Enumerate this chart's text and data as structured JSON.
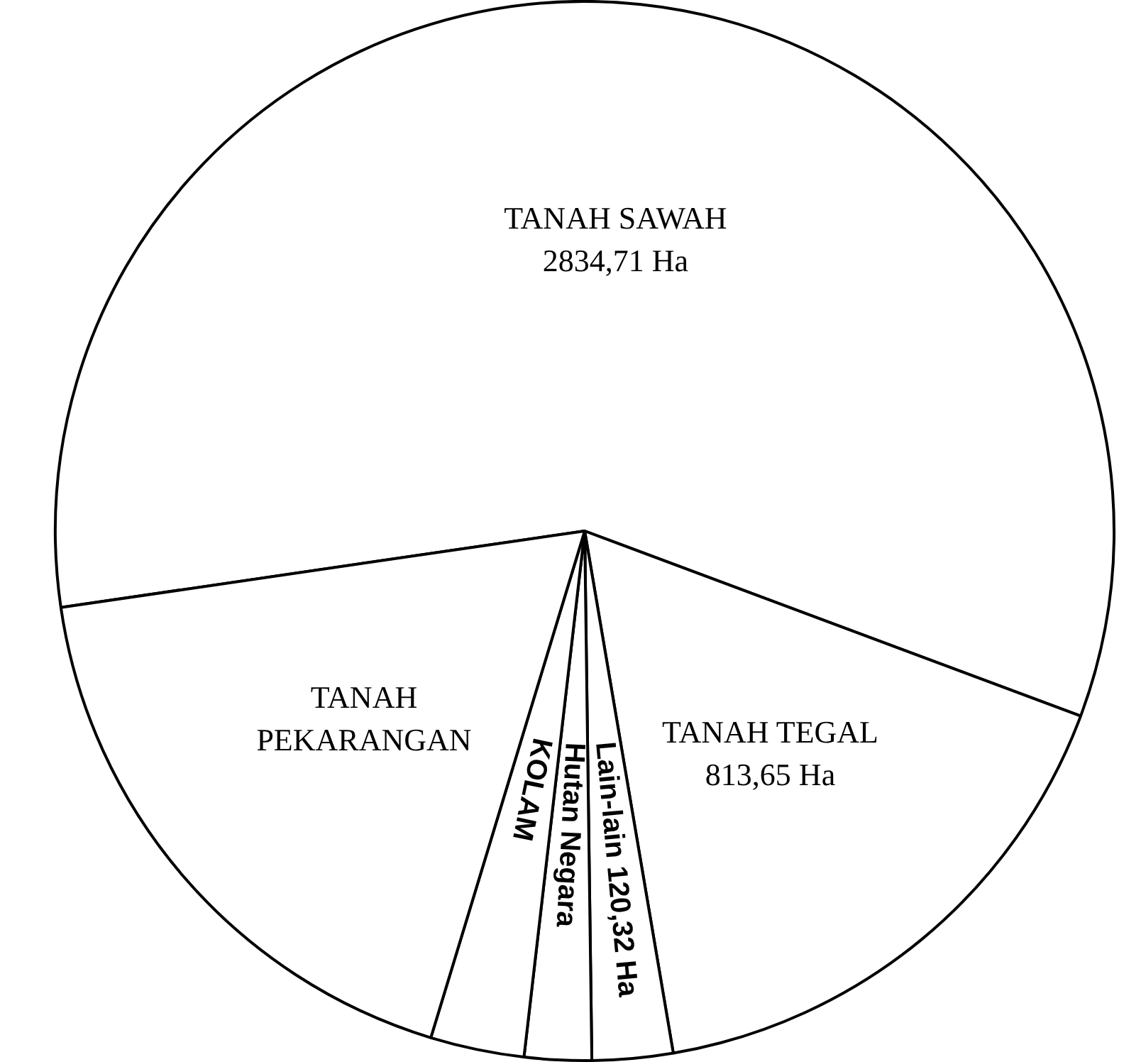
{
  "chart_data": {
    "type": "pie",
    "categories": [
      "TANAH SAWAH",
      "TANAH TEGAL",
      "Lain-lain",
      "Hutan Negara",
      "KOLAM",
      "TANAH PEKARANGAN"
    ],
    "values": [
      2834.71,
      813.65,
      120.32,
      100,
      140,
      880
    ],
    "colors": [
      "#ffffff",
      "#ffffff",
      "#ffffff",
      "#ffffff",
      "#ffffff",
      "#ffffff"
    ],
    "value_labels": [
      "2834,71 Ha",
      "813,65 Ha",
      "120,32 Ha",
      null,
      null,
      null
    ]
  }
}
